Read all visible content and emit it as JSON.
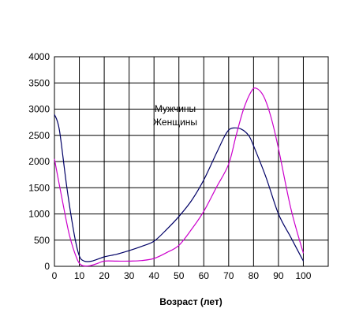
{
  "chart_data": {
    "type": "line",
    "title": "",
    "xlabel": "Возраст (лет)",
    "ylabel": "",
    "xlim": [
      0,
      110
    ],
    "ylim": [
      0,
      4000
    ],
    "x_ticks": [
      0,
      10,
      20,
      30,
      40,
      50,
      60,
      70,
      80,
      90,
      100
    ],
    "y_ticks": [
      0,
      500,
      1000,
      1500,
      2000,
      2500,
      3000,
      3500,
      4000
    ],
    "grid": true,
    "legend": "inline labels at center",
    "series": [
      {
        "name": "Мужчины",
        "color": "#000066",
        "x": [
          0,
          2,
          5,
          8,
          10,
          12,
          15,
          20,
          25,
          30,
          35,
          40,
          45,
          50,
          55,
          60,
          65,
          68,
          70,
          72,
          75,
          78,
          80,
          85,
          90,
          95,
          100
        ],
        "y": [
          2900,
          2600,
          1500,
          600,
          200,
          100,
          100,
          180,
          230,
          300,
          380,
          480,
          700,
          950,
          1250,
          1650,
          2150,
          2450,
          2600,
          2640,
          2620,
          2500,
          2300,
          1700,
          1000,
          550,
          100
        ]
      },
      {
        "name": "Женщины",
        "color": "#cc00cc",
        "x": [
          0,
          3,
          6,
          9,
          11,
          14,
          17,
          20,
          25,
          30,
          35,
          40,
          45,
          50,
          55,
          60,
          65,
          70,
          73,
          76,
          79,
          81,
          84,
          87,
          90,
          95,
          100
        ],
        "y": [
          2050,
          1300,
          600,
          150,
          20,
          10,
          50,
          100,
          100,
          100,
          110,
          150,
          260,
          400,
          700,
          1050,
          1500,
          1950,
          2500,
          3000,
          3330,
          3400,
          3250,
          2850,
          2250,
          1100,
          250
        ]
      }
    ]
  }
}
